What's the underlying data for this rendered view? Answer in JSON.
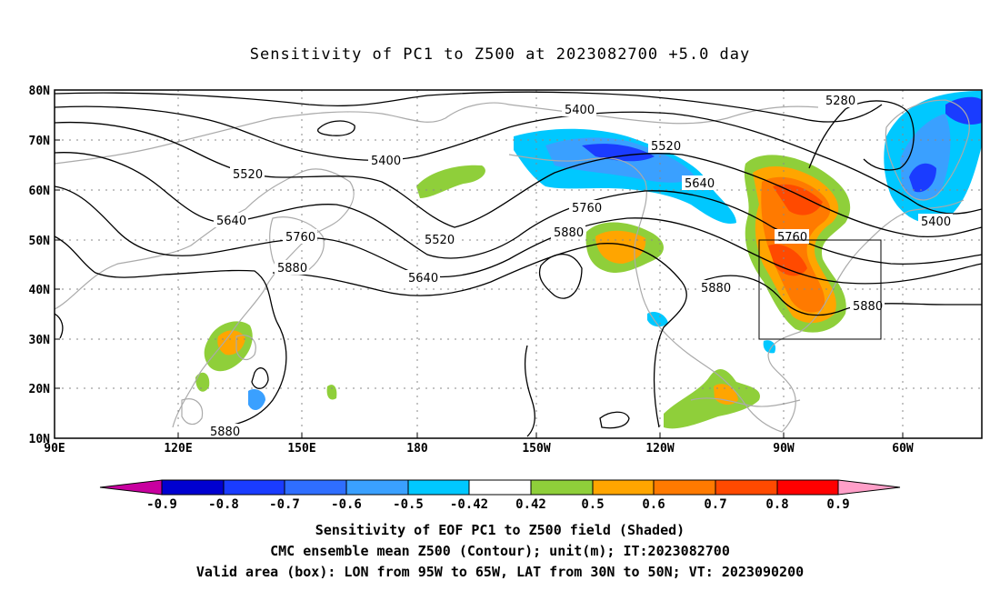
{
  "title": "Sensitivity of PC1 to Z500 at 2023082700 +5.0 day",
  "map": {
    "lat_labels": [
      "80N",
      "70N",
      "60N",
      "50N",
      "40N",
      "30N",
      "20N",
      "10N"
    ],
    "lon_labels": [
      "90E",
      "120E",
      "150E",
      "180",
      "150W",
      "120W",
      "90W",
      "60W"
    ],
    "contour_labels": [
      "5280",
      "5400",
      "5400",
      "5400",
      "5520",
      "5520",
      "5520",
      "5640",
      "5640",
      "5640",
      "5760",
      "5760",
      "5760",
      "5880",
      "5880",
      "5880",
      "5880",
      "5880"
    ],
    "valid_box": {
      "lon_min": -95,
      "lon_max": -65,
      "lat_min": 30,
      "lat_max": 50
    },
    "colors": {
      "coast": "#aaaaaa",
      "contour": "#000000",
      "grid": "#888888"
    }
  },
  "colorbar": {
    "labels": [
      "-0.9",
      "-0.8",
      "-0.7",
      "-0.6",
      "-0.5",
      "-0.42",
      "0.42",
      "0.5",
      "0.6",
      "0.7",
      "0.8",
      "0.9"
    ],
    "colors": [
      "#c8009f",
      "#0000d0",
      "#1a3cff",
      "#2f6eff",
      "#3aa0ff",
      "#00c8ff",
      "#ffffff",
      "#8fcf3a",
      "#ffa500",
      "#ff7a00",
      "#ff4a00",
      "#ff0000",
      "#ff9fc8"
    ]
  },
  "captions": {
    "line1": "Sensitivity of EOF PC1 to Z500 field (Shaded)",
    "line2": "CMC ensemble mean Z500 (Contour); unit(m); IT:2023082700",
    "line3": "Valid area (box): LON from 95W to 65W, LAT from 30N to 50N; VT: 2023090200"
  }
}
